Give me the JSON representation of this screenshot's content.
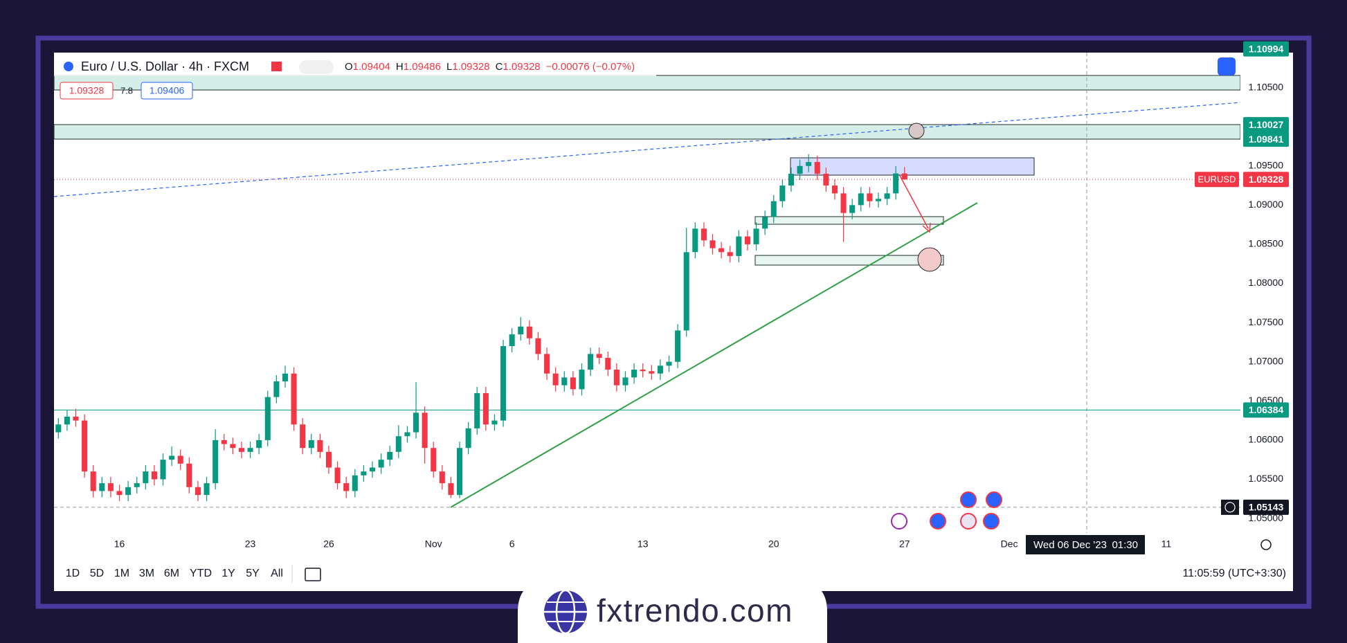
{
  "header": {
    "title": "Euro / U.S. Dollar · 4h · FXCM",
    "ohlc_letters": [
      "O",
      "H",
      "L",
      "C"
    ],
    "change": "−0.00076 (−0.07%)",
    "quote": {
      "sell": 1.09328,
      "spread": 7.8,
      "buy": 1.09406
    }
  },
  "chart_data": {
    "type": "candlestick",
    "up_color": "#089981",
    "down_color": "#f23645",
    "grid": false,
    "categories": [
      null,
      null,
      null,
      null,
      null,
      null,
      null,
      "16",
      null,
      null,
      null,
      null,
      null,
      null,
      null,
      null,
      null,
      null,
      null,
      null,
      null,
      null,
      "23",
      null,
      null,
      null,
      null,
      null,
      null,
      null,
      null,
      "26",
      null,
      null,
      null,
      null,
      null,
      null,
      null,
      null,
      null,
      null,
      null,
      "Nov",
      null,
      null,
      null,
      null,
      null,
      null,
      null,
      null,
      "6",
      null,
      null,
      null,
      null,
      null,
      null,
      null,
      null,
      null,
      null,
      null,
      null,
      null,
      null,
      "13",
      null,
      null,
      null,
      null,
      null,
      null,
      null,
      null,
      null,
      null,
      null,
      null,
      null,
      null,
      "20",
      null,
      null,
      null,
      null,
      null,
      null,
      null,
      null,
      null,
      null,
      null,
      null,
      null,
      null,
      "27",
      null,
      null,
      null,
      null,
      null,
      null,
      null,
      null,
      null,
      null,
      null,
      "Dec",
      null,
      null,
      null,
      null,
      null,
      null,
      null,
      null,
      null,
      null,
      null,
      null,
      null,
      null,
      null,
      null,
      null,
      "11",
      null,
      null,
      null,
      null,
      null,
      null,
      null,
      null
    ],
    "open": [
      1.061,
      1.062,
      1.063,
      1.0625,
      1.056,
      1.0535,
      1.0545,
      1.0535,
      1.053,
      1.054,
      1.0545,
      1.056,
      1.055,
      1.0575,
      1.058,
      1.057,
      1.054,
      1.053,
      1.0545,
      1.06,
      1.0595,
      1.059,
      1.0585,
      1.059,
      1.06,
      1.0655,
      1.0675,
      1.0685,
      1.062,
      1.059,
      1.06,
      1.0585,
      1.0565,
      1.0545,
      1.0535,
      1.0555,
      1.056,
      1.0565,
      1.0575,
      1.0585,
      1.0605,
      1.061,
      1.0635,
      1.059,
      1.056,
      1.0545,
      1.053,
      1.059,
      1.0615,
      1.066,
      1.062,
      1.0625,
      1.072,
      1.0735,
      1.0745,
      1.073,
      1.071,
      1.0685,
      1.067,
      1.068,
      1.0665,
      1.069,
      1.071,
      1.0705,
      1.069,
      1.067,
      1.068,
      1.069,
      1.0688,
      1.0685,
      1.0695,
      1.07,
      1.074,
      1.084,
      1.087,
      1.0855,
      1.0845,
      1.084,
      1.0835,
      1.086,
      1.085,
      1.087,
      1.0885,
      1.0905,
      1.0925,
      1.094,
      1.095,
      1.0955,
      1.094,
      1.0925,
      1.0915,
      1.089,
      1.09,
      1.0915,
      1.0905,
      1.0908,
      1.0915,
      1.09404,
      null,
      null,
      null,
      null,
      null,
      null,
      null,
      null,
      null,
      null,
      null,
      null,
      null,
      null,
      null,
      null,
      null,
      null,
      null,
      null,
      null,
      null,
      null,
      null,
      null,
      null,
      null,
      null,
      null,
      null,
      null,
      null,
      null,
      null,
      null,
      null,
      null,
      null
    ],
    "high": [
      1.0628,
      1.0638,
      1.064,
      1.0633,
      1.0568,
      1.0553,
      1.0553,
      1.0543,
      1.0548,
      1.0553,
      1.0568,
      1.0568,
      1.0583,
      1.0592,
      1.0588,
      1.0578,
      1.0548,
      1.0553,
      1.0614,
      1.0608,
      1.0603,
      1.0598,
      1.0598,
      1.0608,
      1.0663,
      1.0683,
      1.0695,
      1.0693,
      1.0628,
      1.0608,
      1.0608,
      1.0593,
      1.0573,
      1.0553,
      1.0563,
      1.0568,
      1.0573,
      1.0583,
      1.0593,
      1.0619,
      1.0618,
      1.0674,
      1.0643,
      1.0598,
      1.0568,
      1.0553,
      1.0598,
      1.0623,
      1.0668,
      1.0668,
      1.0633,
      1.0728,
      1.0743,
      1.0757,
      1.0753,
      1.0738,
      1.0718,
      1.0693,
      1.0688,
      1.0688,
      1.0698,
      1.0718,
      1.0718,
      1.0713,
      1.0698,
      1.0688,
      1.0698,
      1.0698,
      1.0696,
      1.0703,
      1.0708,
      1.0748,
      1.0871,
      1.0878,
      1.0878,
      1.0863,
      1.0853,
      1.0848,
      1.0868,
      1.0868,
      1.0878,
      1.0893,
      1.0913,
      1.0933,
      1.0948,
      1.0958,
      1.0965,
      1.0963,
      1.0948,
      1.0933,
      1.0923,
      1.0908,
      1.0923,
      1.0923,
      1.0916,
      1.0923,
      1.095,
      1.09486,
      null,
      null,
      null,
      null,
      null,
      null,
      null,
      null,
      null,
      null,
      null,
      null,
      null,
      null,
      null,
      null,
      null,
      null,
      null,
      null,
      null,
      null,
      null,
      null,
      null,
      null,
      null,
      null,
      null,
      null,
      null,
      null,
      null,
      null,
      null,
      null,
      null,
      null
    ],
    "low": [
      1.0602,
      1.0612,
      1.0617,
      1.0552,
      1.0527,
      1.0527,
      1.0527,
      1.0522,
      1.0522,
      1.0532,
      1.0537,
      1.0542,
      1.0542,
      1.0567,
      1.0562,
      1.0532,
      1.0522,
      1.0522,
      1.0537,
      1.0587,
      1.0582,
      1.0577,
      1.0577,
      1.0582,
      1.0592,
      1.0647,
      1.0667,
      1.0612,
      1.0582,
      1.0582,
      1.0577,
      1.0557,
      1.0537,
      1.0526,
      1.0527,
      1.0547,
      1.0552,
      1.0557,
      1.0567,
      1.0577,
      1.0597,
      1.0602,
      1.057,
      1.0552,
      1.0537,
      1.0526,
      1.0526,
      1.0582,
      1.0607,
      1.0612,
      1.0612,
      1.0617,
      1.0712,
      1.0727,
      1.0722,
      1.0702,
      1.0677,
      1.0662,
      1.0662,
      1.0657,
      1.0657,
      1.0682,
      1.0697,
      1.0682,
      1.0662,
      1.0662,
      1.0672,
      1.068,
      1.0677,
      1.0677,
      1.0687,
      1.0692,
      1.0732,
      1.0832,
      1.0847,
      1.0837,
      1.0832,
      1.0827,
      1.0827,
      1.0842,
      1.0842,
      1.0862,
      1.0877,
      1.0897,
      1.0917,
      1.0932,
      1.0942,
      1.0932,
      1.0917,
      1.0907,
      1.0853,
      1.0882,
      1.0892,
      1.0897,
      1.0897,
      1.09,
      1.0907,
      1.09328,
      null,
      null,
      null,
      null,
      null,
      null,
      null,
      null,
      null,
      null,
      null,
      null,
      null,
      null,
      null,
      null,
      null,
      null,
      null,
      null,
      null,
      null,
      null,
      null,
      null,
      null,
      null,
      null,
      null,
      null,
      null,
      null,
      null,
      null,
      null,
      null,
      null,
      null
    ],
    "close": [
      1.062,
      1.063,
      1.0625,
      1.056,
      1.0535,
      1.0545,
      1.0535,
      1.053,
      1.054,
      1.0545,
      1.056,
      1.055,
      1.0575,
      1.058,
      1.057,
      1.054,
      1.053,
      1.0545,
      1.06,
      1.0595,
      1.059,
      1.0585,
      1.059,
      1.06,
      1.0655,
      1.0675,
      1.0685,
      1.062,
      1.059,
      1.06,
      1.0585,
      1.0565,
      1.0545,
      1.0535,
      1.0555,
      1.056,
      1.0565,
      1.0575,
      1.0585,
      1.0605,
      1.061,
      1.0635,
      1.059,
      1.056,
      1.0545,
      1.053,
      1.059,
      1.0615,
      1.066,
      1.062,
      1.0625,
      1.072,
      1.0735,
      1.0745,
      1.073,
      1.071,
      1.0685,
      1.067,
      1.068,
      1.0665,
      1.069,
      1.071,
      1.0705,
      1.069,
      1.067,
      1.068,
      1.069,
      1.0688,
      1.0685,
      1.0695,
      1.07,
      1.074,
      1.084,
      1.087,
      1.0855,
      1.0845,
      1.084,
      1.0835,
      1.086,
      1.085,
      1.087,
      1.0885,
      1.0905,
      1.0925,
      1.094,
      1.095,
      1.0955,
      1.094,
      1.0925,
      1.0915,
      1.089,
      1.09,
      1.0915,
      1.0905,
      1.0908,
      1.0915,
      1.09404,
      1.09328,
      null,
      null,
      null,
      null,
      null,
      null,
      null,
      null,
      null,
      null,
      null,
      null,
      null,
      null,
      null,
      null,
      null,
      null,
      null,
      null,
      null,
      null,
      null,
      null,
      null,
      null,
      null,
      null,
      null,
      null,
      null,
      null,
      null,
      null,
      null,
      null,
      null,
      null
    ],
    "ylim": [
      1.04815,
      1.11
    ],
    "yticks": [
      {
        "value": 1.05,
        "label": "1.05000"
      },
      {
        "value": 1.055,
        "label": "1.05500"
      },
      {
        "value": 1.06,
        "label": "1.06000"
      },
      {
        "value": 1.065,
        "label": "1.06500"
      },
      {
        "value": 1.07,
        "label": "1.07000"
      },
      {
        "value": 1.075,
        "label": "1.07500"
      },
      {
        "value": 1.08,
        "label": "1.08000"
      },
      {
        "value": 1.085,
        "label": "1.08500"
      },
      {
        "value": 1.09,
        "label": "1.09000"
      },
      {
        "value": 1.095,
        "label": "1.09500"
      },
      {
        "value": 1.1,
        "label": "1.10000"
      },
      {
        "value": 1.105,
        "label": "1.10500"
      }
    ],
    "price_lines": [
      {
        "value": 1.10994,
        "color": "#089981",
        "line": "none"
      },
      {
        "value": 1.10027,
        "color": "#089981",
        "line": "none"
      },
      {
        "value": 1.09841,
        "color": "#089981",
        "line": "none"
      },
      {
        "value": 1.06384,
        "color": "#089981",
        "line": "solid"
      },
      {
        "value": 1.05143,
        "color": "#131722",
        "line": "dashed"
      }
    ],
    "last_price_tag": "EURUSD",
    "crosshair": {
      "date": "Wed 06 Dec '23",
      "time": "01:30"
    }
  },
  "toolbar": {
    "ranges": [
      "1D",
      "5D",
      "1M",
      "3M",
      "6M",
      "YTD",
      "1Y",
      "5Y",
      "All"
    ],
    "clock": "11:05:59 (UTC+3:30)"
  },
  "brand": "fxtrendo.com"
}
